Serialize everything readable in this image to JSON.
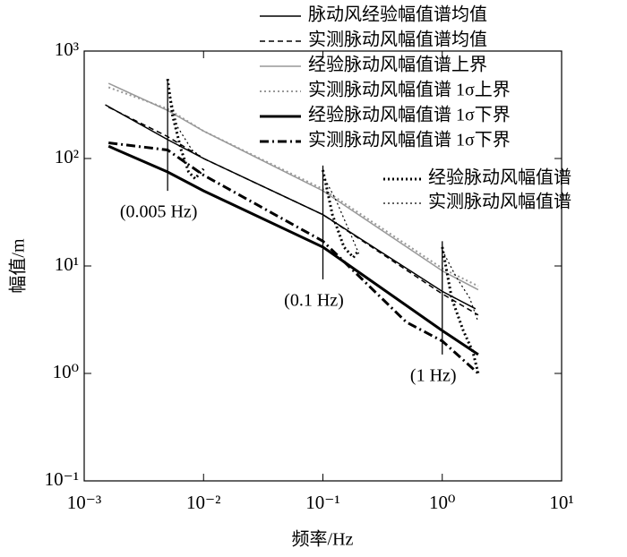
{
  "chart_data": {
    "type": "line",
    "xscale": "log",
    "yscale": "log",
    "x_label": "频率/Hz",
    "y_label": "幅值/m",
    "xlim": [
      0.001,
      10
    ],
    "ylim": [
      0.1,
      1000
    ],
    "xticks": [
      {
        "value": 0.001,
        "label": "10⁻³"
      },
      {
        "value": 0.01,
        "label": "10⁻²"
      },
      {
        "value": 0.1,
        "label": "10⁻¹"
      },
      {
        "value": 1,
        "label": "10⁰"
      },
      {
        "value": 10,
        "label": "10¹"
      }
    ],
    "yticks": [
      {
        "value": 0.1,
        "label": "10⁻¹"
      },
      {
        "value": 1,
        "label": "10⁰"
      },
      {
        "value": 10,
        "label": "10¹"
      },
      {
        "value": 100,
        "label": "10²"
      },
      {
        "value": 1000,
        "label": "10³"
      }
    ],
    "series": [
      {
        "name": "脉动风经验幅值谱均值",
        "color": "#000000",
        "style": "solid",
        "width": 1.5,
        "x": [
          0.0015,
          0.005,
          0.01,
          0.1,
          1,
          1.9
        ],
        "values": [
          316,
          150,
          100,
          30,
          5.8,
          4
        ]
      },
      {
        "name": "实测脉动风幅值谱均值",
        "color": "#000000",
        "style": "dashed",
        "width": 1.5,
        "x": [
          0.0016,
          0.005,
          0.01,
          0.1,
          1,
          2
        ],
        "values": [
          300,
          160,
          100,
          30,
          5.5,
          3.5
        ]
      },
      {
        "name": "经验脉动风幅值谱上界",
        "color": "#999999",
        "style": "solid",
        "width": 1.5,
        "x": [
          0.0016,
          0.005,
          0.01,
          0.1,
          1,
          2
        ],
        "values": [
          500,
          280,
          180,
          50,
          9,
          6
        ]
      },
      {
        "name": "实测脉动风幅值谱 1σ上界",
        "color": "#999999",
        "style": "dotted",
        "width": 2,
        "x": [
          0.0016,
          0.005,
          0.01,
          0.1,
          1,
          2
        ],
        "values": [
          460,
          290,
          180,
          52,
          9.5,
          6.5
        ]
      },
      {
        "name": "经验脉动风幅值谱 1σ下界",
        "color": "#000000",
        "style": "solid",
        "width": 3,
        "x": [
          0.0016,
          0.005,
          0.01,
          0.1,
          1,
          2
        ],
        "values": [
          130,
          75,
          50,
          15,
          2.5,
          1.5
        ]
      },
      {
        "name": "实测脉动风幅值谱 1σ下界",
        "color": "#000000",
        "style": "dashdot",
        "width": 3,
        "x": [
          0.0016,
          0.005,
          0.01,
          0.1,
          0.5,
          1,
          2
        ],
        "values": [
          140,
          120,
          70,
          17,
          3,
          2,
          1
        ]
      },
      {
        "name": "经验脉动风幅值谱",
        "color": "#000000",
        "style": "dotted",
        "width": 3,
        "x": [
          0.005,
          0.0055,
          0.0065,
          0.0075,
          0.0085,
          0.01,
          0.02,
          0.1,
          0.12,
          0.15,
          0.18,
          0.2,
          0.5,
          1,
          1.2,
          1.5,
          1.8,
          2
        ],
        "values": [
          550,
          250,
          120,
          75,
          65,
          80,
          null,
          78,
          30,
          15,
          12,
          14,
          null,
          15,
          5,
          2.5,
          1.6,
          1
        ]
      },
      {
        "name": "实测脉动风幅值谱",
        "color": "#000000",
        "style": "dotted",
        "width": 1.2,
        "x": [
          0.005,
          0.006,
          0.008,
          0.01,
          0.02,
          0.1,
          0.13,
          0.17,
          0.2,
          0.5,
          1,
          1.3,
          1.7,
          2
        ],
        "values": [
          500,
          200,
          120,
          100,
          null,
          70,
          40,
          20,
          13,
          null,
          14,
          8,
          5,
          3
        ]
      }
    ],
    "annotations": [
      {
        "label": "(0.005 Hz)",
        "x": 0.005,
        "y": [
          50,
          530
        ]
      },
      {
        "label": "(0.1 Hz)",
        "x": 0.1,
        "y": [
          7.5,
          86
        ]
      },
      {
        "label": "(1 Hz)",
        "x": 1,
        "y": [
          1.5,
          17
        ]
      }
    ]
  }
}
